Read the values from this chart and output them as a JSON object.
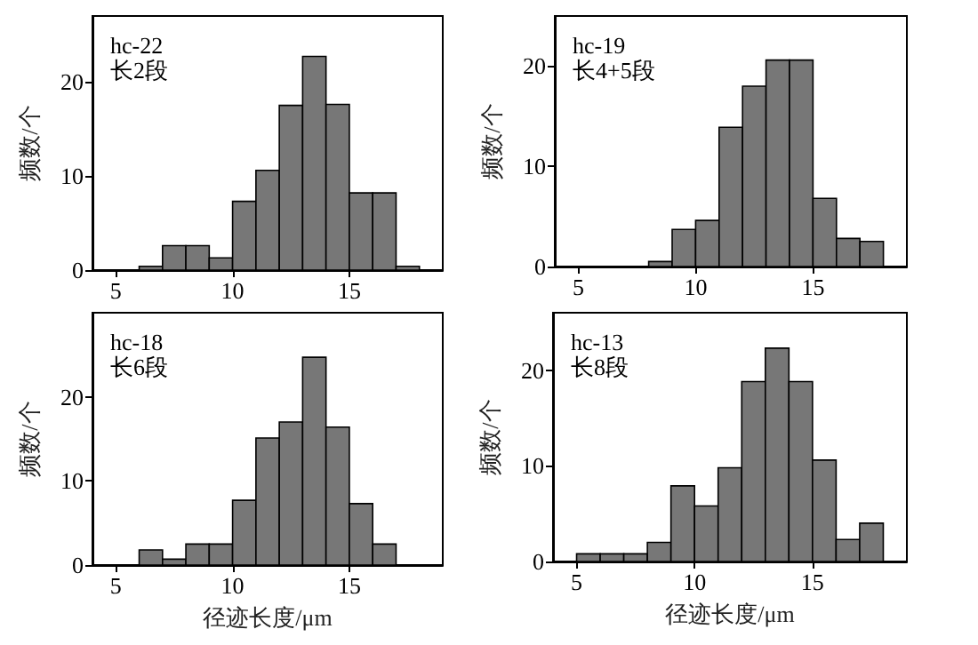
{
  "chart_data": [
    {
      "type": "histogram",
      "annotations": [
        "hc-22",
        "长2段"
      ],
      "ylabel": "频数/个",
      "color": "#777777",
      "bins": [
        6,
        7,
        8,
        9,
        10,
        11,
        12,
        13,
        14,
        15,
        16,
        17,
        18
      ],
      "values": [
        0.4,
        2.6,
        2.6,
        1.3,
        7.3,
        10.6,
        17.5,
        22.7,
        17.6,
        8.2,
        8.2,
        0.4
      ],
      "xlim": [
        4,
        19
      ],
      "xticks": [
        5,
        10,
        15
      ],
      "ylim": [
        0,
        27
      ],
      "yticks": [
        0,
        10,
        20
      ]
    },
    {
      "type": "histogram",
      "annotations": [
        "hc-19",
        "长4+5段"
      ],
      "ylabel": "频数/个",
      "color": "#777777",
      "bins": [
        8,
        9,
        10,
        11,
        12,
        13,
        14,
        15,
        16,
        17,
        18
      ],
      "values": [
        0.5,
        3.7,
        4.6,
        13.9,
        18.0,
        20.6,
        20.6,
        6.8,
        2.8,
        2.5
      ],
      "xlim": [
        4,
        19
      ],
      "xticks": [
        5,
        10,
        15
      ],
      "ylim": [
        0,
        25
      ],
      "yticks": [
        0,
        10,
        20
      ]
    },
    {
      "type": "histogram",
      "annotations": [
        "hc-18",
        "长6段"
      ],
      "ylabel": "频数/个",
      "xlabel": "径迹长度/μm",
      "color": "#777777",
      "bins": [
        6,
        7,
        8,
        9,
        10,
        11,
        12,
        13,
        14,
        15,
        16,
        17
      ],
      "values": [
        1.8,
        0.7,
        2.5,
        2.5,
        7.7,
        15.1,
        17.0,
        24.7,
        16.4,
        7.3,
        2.5
      ],
      "xlim": [
        4,
        19
      ],
      "xticks": [
        5,
        10,
        15
      ],
      "ylim": [
        0,
        30
      ],
      "yticks": [
        0,
        10,
        20
      ]
    },
    {
      "type": "histogram",
      "annotations": [
        "hc-13",
        "长8段"
      ],
      "ylabel": "频数/个",
      "xlabel": "径迹长度/μm",
      "color": "#777777",
      "bins": [
        5,
        6,
        7,
        8,
        9,
        10,
        11,
        12,
        13,
        14,
        15,
        16,
        17,
        18
      ],
      "values": [
        0.8,
        0.8,
        0.8,
        2.0,
        7.9,
        5.8,
        9.8,
        18.8,
        22.3,
        18.8,
        10.6,
        2.3,
        4.0
      ],
      "xlim": [
        4,
        19
      ],
      "xticks": [
        5,
        10,
        15
      ],
      "ylim": [
        0,
        26
      ],
      "yticks": [
        0,
        10,
        20
      ]
    }
  ]
}
